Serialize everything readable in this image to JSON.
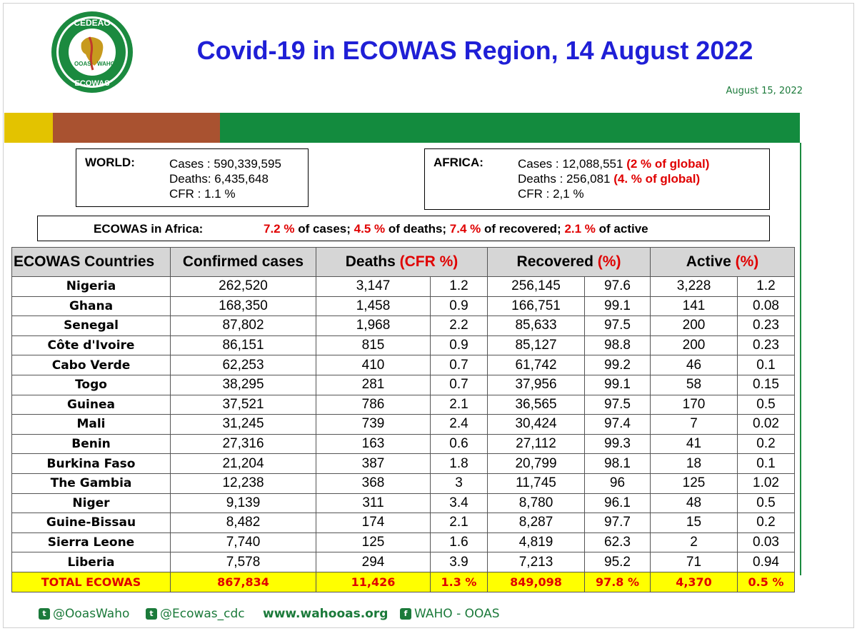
{
  "header": {
    "title": "Covid-19 in ECOWAS Region, 14 August 2022",
    "date": "August 15, 2022",
    "logo_text_top": "CEDEAO",
    "logo_text_bottom": "ECOWAS",
    "logo_text_inner": "OOAS WAHO"
  },
  "band_colors": {
    "yellow": "#e3c300",
    "brown": "#a95230",
    "green": "#138b3e"
  },
  "world": {
    "label": "WORLD:",
    "cases": "Cases : 590,339,595",
    "deaths": "Deaths: 6,435,648",
    "cfr": "CFR : 1.1 %"
  },
  "africa": {
    "label": "AFRICA:",
    "cases": "Cases : 12,088,551",
    "cases_pct": "(2 % of global)",
    "deaths": "Deaths : 256,081",
    "deaths_pct": "(4. % of global)",
    "cfr": "CFR : 2,1 %"
  },
  "ecowas_in_africa": {
    "label": "ECOWAS in Africa:",
    "cases_pct": "7.2 %",
    "cases_txt": " of cases; ",
    "deaths_pct": "4.5 %",
    "deaths_txt": " of deaths; ",
    "recovered_pct": "7.4 %",
    "recovered_txt": " of recovered; ",
    "active_pct": "2.1 %",
    "active_txt": " of active"
  },
  "table": {
    "headers": {
      "country": "ECOWAS Countries",
      "confirmed": "Confirmed cases",
      "deaths": "Deaths",
      "deaths_suffix": "(CFR %)",
      "recovered": "Recovered",
      "recovered_suffix": "(%)",
      "active": "Active",
      "active_suffix": "(%)"
    },
    "rows": [
      [
        "Nigeria",
        "262,520",
        "3,147",
        "1.2",
        "256,145",
        "97.6",
        "3,228",
        "1.2"
      ],
      [
        "Ghana",
        "168,350",
        "1,458",
        "0.9",
        "166,751",
        "99.1",
        "141",
        "0.08"
      ],
      [
        "Senegal",
        "87,802",
        "1,968",
        "2.2",
        "85,633",
        "97.5",
        "200",
        "0.23"
      ],
      [
        "Côte d'Ivoire",
        "86,151",
        "815",
        "0.9",
        "85,127",
        "98.8",
        "200",
        "0.23"
      ],
      [
        "Cabo Verde",
        "62,253",
        "410",
        "0.7",
        "61,742",
        "99.2",
        "46",
        "0.1"
      ],
      [
        "Togo",
        "38,295",
        "281",
        "0.7",
        "37,956",
        "99.1",
        "58",
        "0.15"
      ],
      [
        "Guinea",
        "37,521",
        "786",
        "2.1",
        "36,565",
        "97.5",
        "170",
        "0.5"
      ],
      [
        "Mali",
        "31,245",
        "739",
        "2.4",
        "30,424",
        "97.4",
        "7",
        "0.02"
      ],
      [
        "Benin",
        "27,316",
        "163",
        "0.6",
        "27,112",
        "99.3",
        "41",
        "0.2"
      ],
      [
        "Burkina Faso",
        "21,204",
        "387",
        "1.8",
        "20,799",
        "98.1",
        "18",
        "0.1"
      ],
      [
        "The Gambia",
        "12,238",
        "368",
        "3",
        "11,745",
        "96",
        "125",
        "1.02"
      ],
      [
        "Niger",
        "9,139",
        "311",
        "3.4",
        "8,780",
        "96.1",
        "48",
        "0.5"
      ],
      [
        "Guine-Bissau",
        "8,482",
        "174",
        "2.1",
        "8,287",
        "97.7",
        "15",
        "0.2"
      ],
      [
        "Sierra Leone",
        "7,740",
        "125",
        "1.6",
        "4,819",
        "62.3",
        "2",
        "0.03"
      ],
      [
        "Liberia",
        "7,578",
        "294",
        "3.9",
        "7,213",
        "95.2",
        "71",
        "0.94"
      ]
    ],
    "total": [
      "TOTAL ECOWAS",
      "867,834",
      "11,426",
      "1.3 %",
      "849,098",
      "97.8 %",
      "4,370",
      "0.5 %"
    ]
  },
  "footer": {
    "twitter1": "@OoasWaho",
    "twitter2": "@Ecowas_cdc",
    "website": "www.wahooas.org",
    "facebook": "WAHO - OOAS"
  }
}
